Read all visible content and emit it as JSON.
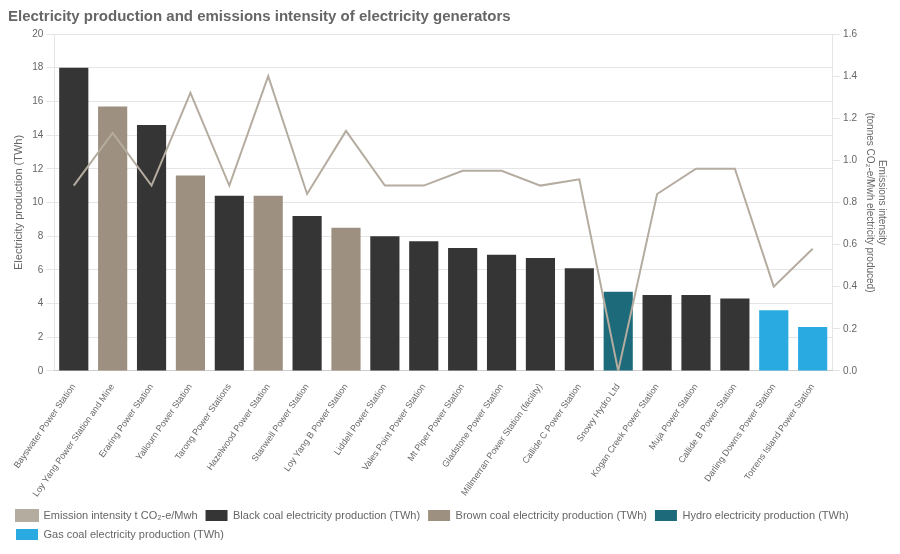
{
  "chart_data": {
    "type": "bar",
    "title": "Electricity production and emissions intensity of electricity generators",
    "categories": [
      "Bayswater Power Station",
      "Loy Yang Power Station and Mine",
      "Eraring Power Station",
      "Yallourn Power Station",
      "Tarong Power Stations",
      "Hazelwood Power Station",
      "Stanwell Power Station",
      "Loy Yang B Power Station",
      "Liddell Power Station",
      "Vales Point Power Station",
      "Mt Piper Power Station",
      "Gladstone Power Station",
      "Millmerran Power Station (facility)",
      "Callide C Power Station",
      "Snowy Hydro Ltd",
      "Kogan Creek Power Station",
      "Muja Power Station",
      "Callide B Power Station",
      "Darling Downs Power Station",
      "Torrens Island Power Station"
    ],
    "series": [
      {
        "name": "Black coal electricity production (TWh)",
        "color": "#353535",
        "values": [
          18.0,
          null,
          14.6,
          null,
          10.4,
          null,
          9.2,
          null,
          8.0,
          7.7,
          7.3,
          6.9,
          6.7,
          6.1,
          null,
          4.5,
          4.5,
          4.3,
          null,
          null
        ]
      },
      {
        "name": "Brown coal electricity production (TWh)",
        "color": "#9e9080",
        "values": [
          null,
          15.7,
          null,
          11.6,
          null,
          10.4,
          null,
          8.5,
          null,
          null,
          null,
          null,
          null,
          null,
          null,
          null,
          null,
          null,
          null,
          null
        ]
      },
      {
        "name": "Hydro electricity production (TWh)",
        "color": "#1d6b7a",
        "values": [
          null,
          null,
          null,
          null,
          null,
          null,
          null,
          null,
          null,
          null,
          null,
          null,
          null,
          null,
          4.7,
          null,
          null,
          null,
          null,
          null
        ]
      },
      {
        "name": "Gas coal electricity production (TWh)",
        "color": "#29ABE2",
        "values": [
          null,
          null,
          null,
          null,
          null,
          null,
          null,
          null,
          null,
          null,
          null,
          null,
          null,
          null,
          null,
          null,
          null,
          null,
          3.6,
          2.6
        ]
      },
      {
        "name": "Emission intensity t CO₂-e/Mwh",
        "color": "#b5aca0",
        "type": "line",
        "axis": "y2",
        "marker": "none",
        "values": [
          0.88,
          1.13,
          0.88,
          1.32,
          0.88,
          1.4,
          0.84,
          1.14,
          0.88,
          0.88,
          0.95,
          0.95,
          0.88,
          0.91,
          0.0,
          0.84,
          0.96,
          0.96,
          0.4,
          0.58
        ]
      }
    ],
    "ylabel": "Electricity production (TWh)",
    "y2label": "Emissions intensity\n(tonnes CO₂-e/Mwh electricity produced)",
    "ylim": [
      0,
      20
    ],
    "yticks": [
      0,
      2,
      4,
      6,
      8,
      10,
      12,
      14,
      16,
      18,
      20
    ],
    "y2lim": [
      0,
      1.6
    ],
    "y2ticks": [
      {
        "value": 0,
        "label": "0.0"
      },
      0.2,
      0.4,
      0.6,
      0.8,
      {
        "value": 1,
        "label": "1.0"
      },
      1.2,
      1.4,
      1.6
    ],
    "grid": true,
    "legend": "bottom"
  }
}
